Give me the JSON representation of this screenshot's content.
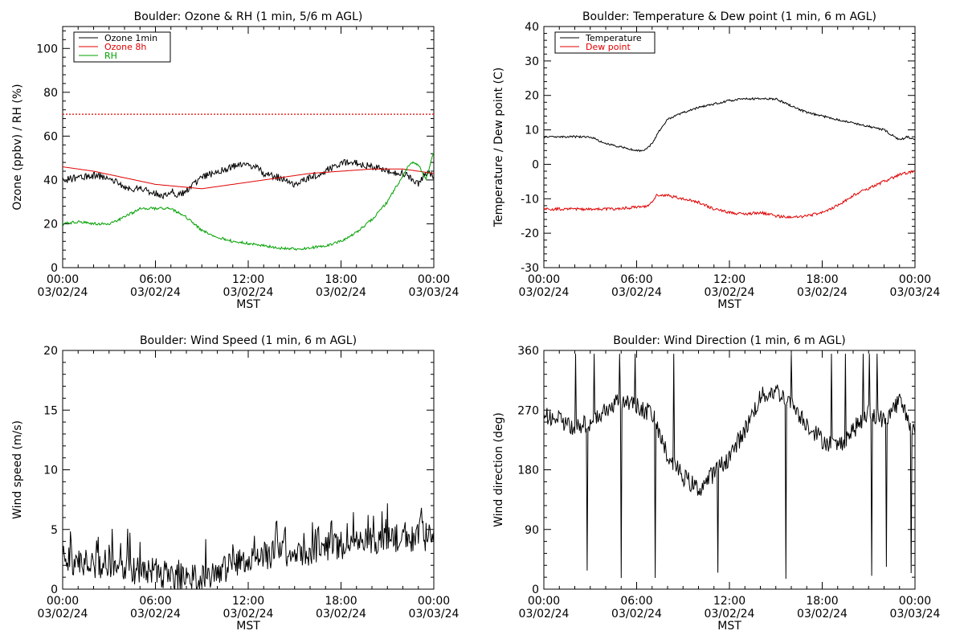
{
  "figure": {
    "background": "#ffffff",
    "axis_color": "#000000"
  },
  "chart_data": [
    {
      "type": "line",
      "title": "Boulder: Ozone & RH (1 min, 5/6 m AGL)",
      "xlabel": "MST",
      "ylabel": "Ozone (ppbv) / RH (%)",
      "xlim": [
        0,
        24
      ],
      "ylim": [
        0,
        110
      ],
      "yticks": [
        0,
        20,
        40,
        60,
        80,
        100
      ],
      "xtick_labels": [
        [
          "00:00",
          "03/02/24"
        ],
        [
          "06:00",
          "03/02/24"
        ],
        [
          "12:00",
          "03/02/24"
        ],
        [
          "18:00",
          "03/02/24"
        ],
        [
          "00:00",
          "03/03/24"
        ]
      ],
      "legend": {
        "position": "top-left",
        "entries": [
          {
            "label": "Ozone 1min",
            "color": "#000000"
          },
          {
            "label": "Ozone 8h",
            "color": "#e00000"
          },
          {
            "label": "RH",
            "color": "#00a000"
          }
        ]
      },
      "reference_line": {
        "y": 70,
        "color": "#e00000",
        "style": "dotted"
      },
      "series": [
        {
          "name": "Ozone 1min",
          "color": "#000000",
          "noise": 1.6,
          "x": [
            0,
            1,
            2,
            3,
            3.5,
            4,
            5,
            6,
            6.5,
            7,
            7.5,
            8,
            9,
            10,
            11,
            12,
            12.5,
            13,
            14,
            15,
            16,
            17,
            18,
            19,
            20,
            21,
            22,
            22.5,
            23,
            23.5,
            24
          ],
          "y": [
            40,
            41,
            42,
            41,
            39,
            36,
            36,
            34,
            33,
            35,
            33,
            35,
            41,
            44,
            46,
            47,
            46,
            43,
            41,
            38,
            41,
            44,
            48,
            48,
            46,
            44,
            43,
            41,
            38,
            43,
            42
          ]
        },
        {
          "name": "Ozone 8h",
          "color": "#e00000",
          "noise": 0,
          "x": [
            0,
            2,
            4,
            6,
            7.5,
            9,
            10,
            12,
            14,
            16,
            18,
            20,
            22,
            23,
            24
          ],
          "y": [
            46,
            44,
            41,
            38,
            37,
            36,
            37,
            39,
            41,
            43,
            44,
            45,
            45,
            44,
            43
          ]
        },
        {
          "name": "RH",
          "color": "#00a000",
          "noise": 0.6,
          "x": [
            0,
            1,
            2,
            3,
            4,
            5,
            6,
            7,
            8,
            9,
            10,
            11,
            12,
            13,
            14,
            15,
            16,
            17,
            18,
            19,
            20,
            21,
            22,
            22.5,
            23,
            23.5,
            24
          ],
          "y": [
            20,
            21,
            20,
            20,
            23,
            27,
            27,
            27,
            23,
            17,
            14,
            12,
            11,
            10,
            9,
            8.5,
            9,
            10,
            12,
            16,
            22,
            30,
            42,
            48,
            47,
            40,
            53
          ]
        }
      ]
    },
    {
      "type": "line",
      "title": "Boulder: Temperature & Dew point (1 min, 6 m AGL)",
      "xlabel": "MST",
      "ylabel": "Temperature / Dew point (C)",
      "xlim": [
        0,
        24
      ],
      "ylim": [
        -30,
        40
      ],
      "yticks": [
        -30,
        -20,
        -10,
        0,
        10,
        20,
        30,
        40
      ],
      "xtick_labels": [
        [
          "00:00",
          "03/02/24"
        ],
        [
          "06:00",
          "03/02/24"
        ],
        [
          "12:00",
          "03/02/24"
        ],
        [
          "18:00",
          "03/02/24"
        ],
        [
          "00:00",
          "03/03/24"
        ]
      ],
      "legend": {
        "position": "top-left",
        "entries": [
          {
            "label": "Temperature",
            "color": "#000000"
          },
          {
            "label": "Dew point",
            "color": "#e00000"
          }
        ]
      },
      "series": [
        {
          "name": "Temperature",
          "color": "#000000",
          "noise": 0.3,
          "x": [
            0,
            1,
            2,
            3,
            4,
            5,
            6,
            6.5,
            7,
            7.5,
            8,
            9,
            10,
            11,
            12,
            13,
            14,
            15,
            16,
            17,
            18,
            19,
            20,
            21,
            22,
            23,
            23.5,
            24
          ],
          "y": [
            8,
            8,
            8,
            8,
            6,
            5,
            4,
            4,
            6,
            10,
            13,
            15,
            16.5,
            17.5,
            18.5,
            19,
            19,
            19,
            17,
            15,
            14,
            13,
            12,
            11,
            10,
            7,
            8,
            7
          ]
        },
        {
          "name": "Dew point",
          "color": "#e00000",
          "noise": 0.4,
          "x": [
            0,
            2,
            4,
            6,
            6.8,
            7.3,
            8,
            9,
            10,
            11,
            12,
            13,
            14,
            15,
            16,
            17,
            18,
            19,
            20,
            21,
            22,
            23,
            24
          ],
          "y": [
            -13,
            -13,
            -13,
            -12.5,
            -12,
            -9,
            -9,
            -10,
            -11,
            -13,
            -14,
            -14.5,
            -14,
            -15,
            -15.5,
            -15,
            -14,
            -12,
            -9,
            -7,
            -5,
            -3,
            -2
          ]
        }
      ]
    },
    {
      "type": "line",
      "title": "Boulder: Wind Speed (1 min, 6 m AGL)",
      "xlabel": "MST",
      "ylabel": "Wind speed (m/s)",
      "xlim": [
        0,
        24
      ],
      "ylim": [
        0,
        20
      ],
      "yticks": [
        0,
        5,
        10,
        15,
        20
      ],
      "xtick_labels": [
        [
          "00:00",
          "03/02/24"
        ],
        [
          "06:00",
          "03/02/24"
        ],
        [
          "12:00",
          "03/02/24"
        ],
        [
          "18:00",
          "03/02/24"
        ],
        [
          "00:00",
          "03/03/24"
        ]
      ],
      "series": [
        {
          "name": "Wind speed",
          "color": "#000000",
          "noise": 1.2,
          "x": [
            0,
            1,
            2,
            3,
            4,
            5,
            6,
            7,
            8,
            9,
            10,
            11,
            12,
            13,
            14,
            15,
            16,
            17,
            18,
            19,
            20,
            21,
            22,
            23,
            24
          ],
          "y": [
            2.5,
            2.2,
            2,
            2,
            1.8,
            1.5,
            1.5,
            1,
            0.8,
            1,
            1.5,
            2,
            2.5,
            2.8,
            3,
            3,
            3.2,
            3.5,
            3.5,
            3.8,
            4,
            4,
            4.2,
            4.3,
            4.5
          ]
        }
      ]
    },
    {
      "type": "line",
      "title": "Boulder: Wind Direction (1 min, 6 m AGL)",
      "xlabel": "MST",
      "ylabel": "Wind direction (deg)",
      "xlim": [
        0,
        24
      ],
      "ylim": [
        0,
        360
      ],
      "yticks": [
        0,
        90,
        180,
        270,
        360
      ],
      "xtick_labels": [
        [
          "00:00",
          "03/02/24"
        ],
        [
          "06:00",
          "03/02/24"
        ],
        [
          "12:00",
          "03/02/24"
        ],
        [
          "18:00",
          "03/02/24"
        ],
        [
          "00:00",
          "03/03/24"
        ]
      ],
      "series": [
        {
          "name": "Wind direction",
          "color": "#000000",
          "noise": 14,
          "x": [
            0,
            1,
            2,
            3,
            4,
            5,
            6,
            7,
            8,
            9,
            10,
            11,
            12,
            13,
            14,
            15,
            16,
            17,
            18,
            19,
            20,
            21,
            22,
            23,
            24
          ],
          "y": [
            265,
            255,
            245,
            250,
            270,
            285,
            275,
            265,
            200,
            170,
            150,
            175,
            200,
            240,
            290,
            300,
            280,
            250,
            225,
            215,
            240,
            265,
            255,
            285,
            235
          ]
        }
      ]
    }
  ]
}
